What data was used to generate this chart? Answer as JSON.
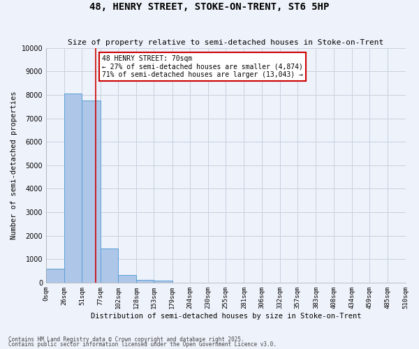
{
  "title": "48, HENRY STREET, STOKE-ON-TRENT, ST6 5HP",
  "subtitle": "Size of property relative to semi-detached houses in Stoke-on-Trent",
  "xlabel": "Distribution of semi-detached houses by size in Stoke-on-Trent",
  "ylabel": "Number of semi-detached properties",
  "bin_labels": [
    "0sqm",
    "26sqm",
    "51sqm",
    "77sqm",
    "102sqm",
    "128sqm",
    "153sqm",
    "179sqm",
    "204sqm",
    "230sqm",
    "255sqm",
    "281sqm",
    "306sqm",
    "332sqm",
    "357sqm",
    "383sqm",
    "408sqm",
    "434sqm",
    "459sqm",
    "485sqm",
    "510sqm"
  ],
  "bin_edges": [
    0,
    26,
    51,
    77,
    102,
    128,
    153,
    179,
    204,
    230,
    255,
    281,
    306,
    332,
    357,
    383,
    408,
    434,
    459,
    485,
    510
  ],
  "bar_heights": [
    600,
    8050,
    7750,
    1450,
    320,
    120,
    80,
    0,
    0,
    0,
    0,
    0,
    0,
    0,
    0,
    0,
    0,
    0,
    0,
    0
  ],
  "bar_color": "#aec6e8",
  "bar_edge_color": "#5a9fd4",
  "property_sqm": 70,
  "vline_color": "#cc0000",
  "annotation_text": "48 HENRY STREET: 70sqm\n← 27% of semi-detached houses are smaller (4,874)\n71% of semi-detached houses are larger (13,043) →",
  "annotation_box_color": "#ffffff",
  "annotation_box_edge": "#cc0000",
  "ylim": [
    0,
    10000
  ],
  "yticks": [
    0,
    1000,
    2000,
    3000,
    4000,
    5000,
    6000,
    7000,
    8000,
    9000,
    10000
  ],
  "grid_color": "#c8d0e0",
  "bg_color": "#eef2fa",
  "footer_line1": "Contains HM Land Registry data © Crown copyright and database right 2025.",
  "footer_line2": "Contains public sector information licensed under the Open Government Licence v3.0."
}
